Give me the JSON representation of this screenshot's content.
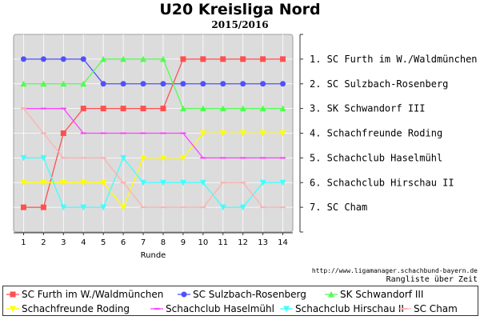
{
  "chart_data": {
    "type": "line",
    "title": "U20 Kreisliga Nord",
    "subtitle": "2015/2016",
    "xlabel": "Runde",
    "x": [
      1,
      2,
      3,
      4,
      5,
      6,
      7,
      8,
      9,
      10,
      11,
      12,
      13,
      14
    ],
    "ylim": [
      1,
      7
    ],
    "y_inverted": true,
    "grid": true,
    "legend_position": "bottom",
    "right_labels": [
      "1. SC Furth im W./Waldmünchen",
      "2. SC Sulzbach-Rosenberg",
      "3. SK Schwandorf III",
      "4. Schachfreunde Roding",
      "5. Schachclub Haselmühl",
      "6. Schachclub Hirschau II",
      "7. SC Cham"
    ],
    "series": [
      {
        "name": "SC Furth im W./Waldmünchen",
        "color": "#ff5050",
        "marker": "square",
        "values": [
          7,
          7,
          4,
          3,
          3,
          3,
          3,
          3,
          1,
          1,
          1,
          1,
          1,
          1
        ]
      },
      {
        "name": "SC Sulzbach-Rosenberg",
        "color": "#5050ff",
        "marker": "circle",
        "values": [
          1,
          1,
          1,
          1,
          2,
          2,
          2,
          2,
          2,
          2,
          2,
          2,
          2,
          2
        ]
      },
      {
        "name": "SK Schwandorf III",
        "color": "#50ff50",
        "marker": "triangle-up",
        "values": [
          2,
          2,
          2,
          2,
          1,
          1,
          1,
          1,
          3,
          3,
          3,
          3,
          3,
          3
        ]
      },
      {
        "name": "Schachfreunde Roding",
        "color": "#ffff00",
        "marker": "triangle-down",
        "values": [
          6,
          6,
          6,
          6,
          6,
          7,
          5,
          5,
          5,
          4,
          4,
          4,
          4,
          4
        ]
      },
      {
        "name": "Schachclub Haselmühl",
        "color": "#ff40ff",
        "marker": "dash",
        "values": [
          3,
          3,
          3,
          4,
          4,
          4,
          4,
          4,
          4,
          5,
          5,
          5,
          5,
          5
        ]
      },
      {
        "name": "Schachclub Hirschau II",
        "color": "#40ffff",
        "marker": "triangle-down",
        "values": [
          5,
          5,
          7,
          7,
          7,
          5,
          6,
          6,
          6,
          6,
          7,
          7,
          6,
          6
        ]
      },
      {
        "name": "SC Cham",
        "color": "#ffb0b0",
        "marker": "dash",
        "values": [
          3,
          4,
          5,
          5,
          5,
          6,
          7,
          7,
          7,
          7,
          6,
          6,
          7,
          7
        ]
      }
    ]
  },
  "footer": {
    "source": "http://www.ligamanager.schachbund-bayern.de",
    "caption": "Rangliste über Zeit"
  }
}
